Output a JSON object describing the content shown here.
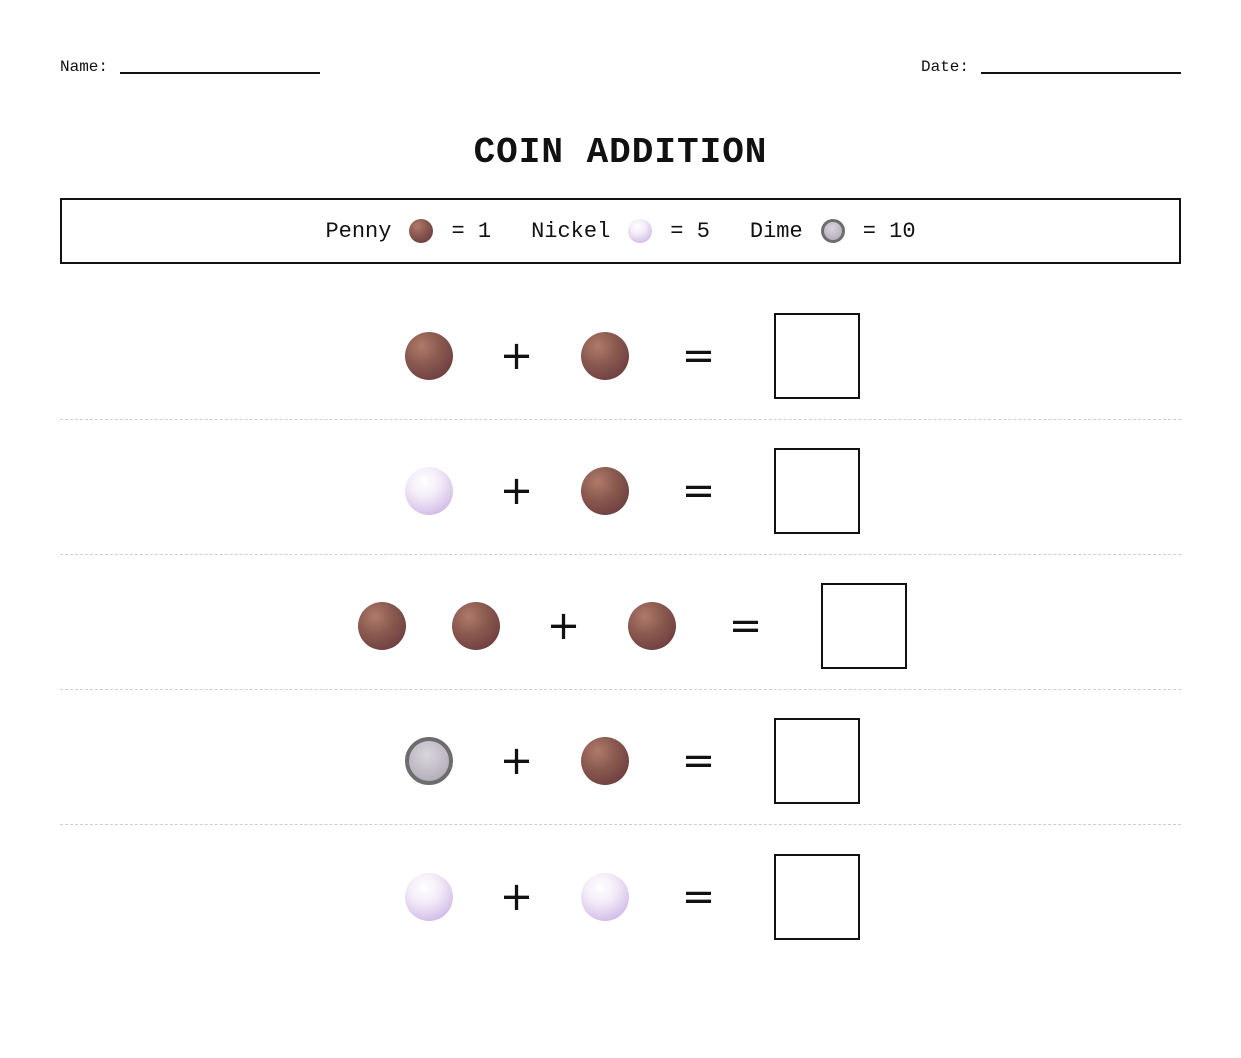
{
  "header": {
    "name_label": "Name:",
    "date_label": "Date:"
  },
  "title": "COIN ADDITION",
  "legend": [
    {
      "label": "Penny",
      "coin": "penny",
      "value_text": "= 1"
    },
    {
      "label": "Nickel",
      "coin": "nickel",
      "value_text": "= 5"
    },
    {
      "label": "Dime",
      "coin": "dime",
      "value_text": "= 10"
    }
  ],
  "symbols": {
    "plus": "+",
    "equals": "="
  },
  "problems": [
    {
      "left": [
        "penny"
      ],
      "right": [
        "penny"
      ]
    },
    {
      "left": [
        "nickel"
      ],
      "right": [
        "penny"
      ]
    },
    {
      "left": [
        "penny",
        "penny"
      ],
      "right": [
        "penny"
      ]
    },
    {
      "left": [
        "dime"
      ],
      "right": [
        "penny"
      ]
    },
    {
      "left": [
        "nickel"
      ],
      "right": [
        "nickel"
      ]
    }
  ],
  "colors": {
    "penny": "#8a5a50",
    "nickel": "#d9c6ea",
    "dime": "#bdb7c2"
  }
}
